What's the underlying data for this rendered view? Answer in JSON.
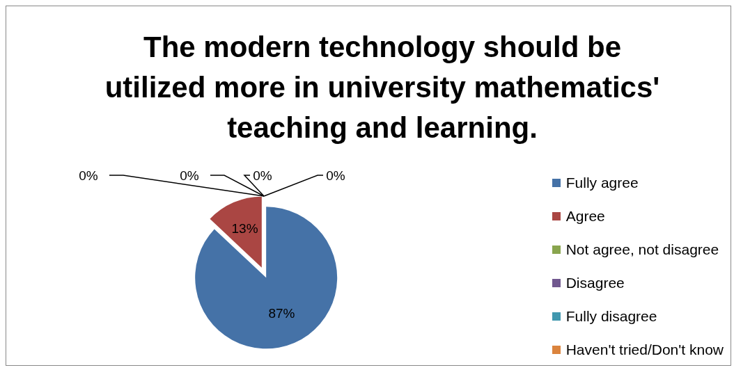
{
  "chart_data": {
    "type": "pie",
    "title": "The modern technology should be utilized more in university mathematics' teaching and learning.",
    "categories": [
      "Fully agree",
      "Agree",
      "Not agree, not disagree",
      "Disagree",
      "Fully disagree",
      "Haven't tried/Don't know"
    ],
    "values": [
      87,
      13,
      0,
      0,
      0,
      0
    ],
    "colors": [
      "#4572a7",
      "#aa4643",
      "#89a54e",
      "#71588f",
      "#4198af",
      "#db843d"
    ],
    "value_labels": [
      "87%",
      "13%",
      "0%",
      "0%",
      "0%",
      "0%"
    ],
    "legend": "right"
  }
}
